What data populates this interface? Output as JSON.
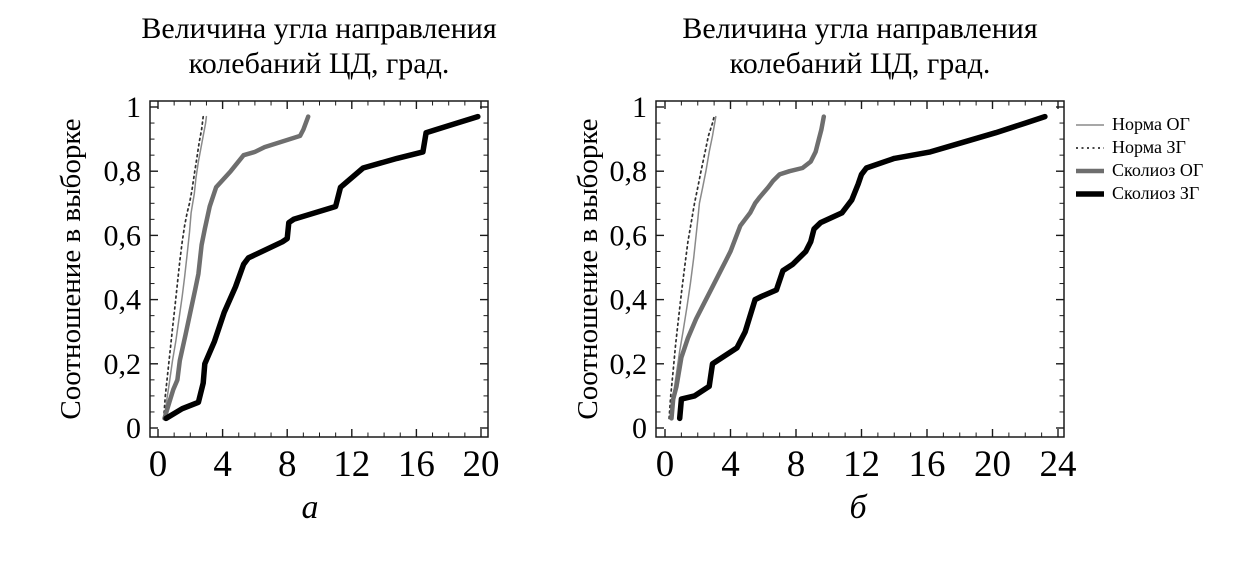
{
  "figure": {
    "background": "#ffffff",
    "frame_color": "#1a1a1a"
  },
  "legend": {
    "position": "right",
    "items": [
      {
        "key": "norma-og",
        "label": "Норма ОГ",
        "color": "#8a8a8a",
        "width": 1.5,
        "dash": ""
      },
      {
        "key": "norma-zg",
        "label": "Норма ЗГ",
        "color": "#2f2f2f",
        "width": 1.7,
        "dash": "2 3.5"
      },
      {
        "key": "skolioz-og",
        "label": "Сколиоз ОГ",
        "color": "#6e6e6e",
        "width": 4.5,
        "dash": ""
      },
      {
        "key": "skolioz-zg",
        "label": "Сколиоз ЗГ",
        "color": "#000000",
        "width": 5.5,
        "dash": ""
      }
    ]
  },
  "chart_data": [
    {
      "id": "a",
      "type": "line",
      "subtype": "ecdf",
      "title": "Величина угла направления колебаний ЦД, град.",
      "title_lines": [
        "Величина угла направления",
        "колебаний ЦД, град."
      ],
      "ylabel": "Соотношение в выборке",
      "sublabel": "а",
      "xlim": [
        0,
        20
      ],
      "ylim": [
        0,
        1
      ],
      "grid": false,
      "x_major_ticks": [
        0,
        4,
        8,
        12,
        16,
        20
      ],
      "x_tick_labels": [
        "0",
        "4",
        "8",
        "12",
        "16",
        "20"
      ],
      "x_minor_step": 1,
      "y_major_ticks": [
        0,
        0.2,
        0.4,
        0.6,
        0.8,
        1
      ],
      "y_tick_labels": [
        "0",
        "0,2",
        "0,4",
        "0,6",
        "0,8",
        "1"
      ],
      "y_minor_step": 0.05,
      "series": [
        {
          "name": "Норма ОГ",
          "points": [
            [
              0.4,
              0.03
            ],
            [
              0.55,
              0.09
            ],
            [
              0.7,
              0.14
            ],
            [
              0.9,
              0.21
            ],
            [
              1.1,
              0.27
            ],
            [
              1.3,
              0.34
            ],
            [
              1.5,
              0.41
            ],
            [
              1.65,
              0.47
            ],
            [
              1.8,
              0.54
            ],
            [
              1.95,
              0.61
            ],
            [
              2.05,
              0.67
            ],
            [
              2.15,
              0.7
            ],
            [
              2.25,
              0.73
            ],
            [
              2.35,
              0.78
            ],
            [
              2.5,
              0.83
            ],
            [
              2.65,
              0.87
            ],
            [
              2.8,
              0.91
            ],
            [
              2.95,
              0.95
            ],
            [
              3.0,
              0.97
            ]
          ]
        },
        {
          "name": "Норма ЗГ",
          "points": [
            [
              0.35,
              0.03
            ],
            [
              0.45,
              0.1
            ],
            [
              0.6,
              0.17
            ],
            [
              0.75,
              0.24
            ],
            [
              0.9,
              0.31
            ],
            [
              1.05,
              0.38
            ],
            [
              1.2,
              0.45
            ],
            [
              1.35,
              0.52
            ],
            [
              1.5,
              0.58
            ],
            [
              1.65,
              0.63
            ],
            [
              1.8,
              0.67
            ],
            [
              1.95,
              0.7
            ],
            [
              2.1,
              0.74
            ],
            [
              2.25,
              0.79
            ],
            [
              2.4,
              0.84
            ],
            [
              2.55,
              0.89
            ],
            [
              2.7,
              0.93
            ],
            [
              2.8,
              0.97
            ]
          ]
        },
        {
          "name": "Сколиоз ОГ",
          "points": [
            [
              0.4,
              0.03
            ],
            [
              0.7,
              0.08
            ],
            [
              0.95,
              0.12
            ],
            [
              1.2,
              0.15
            ],
            [
              1.35,
              0.21
            ],
            [
              1.7,
              0.29
            ],
            [
              2.0,
              0.36
            ],
            [
              2.3,
              0.43
            ],
            [
              2.5,
              0.48
            ],
            [
              2.7,
              0.57
            ],
            [
              2.9,
              0.62
            ],
            [
              3.2,
              0.69
            ],
            [
              3.6,
              0.75
            ],
            [
              4.5,
              0.8
            ],
            [
              5.3,
              0.85
            ],
            [
              6.0,
              0.86
            ],
            [
              6.6,
              0.875
            ],
            [
              8.8,
              0.91
            ],
            [
              9.0,
              0.93
            ],
            [
              9.3,
              0.97
            ]
          ]
        },
        {
          "name": "Сколиоз ЗГ",
          "points": [
            [
              0.5,
              0.03
            ],
            [
              1.5,
              0.06
            ],
            [
              2.5,
              0.08
            ],
            [
              2.8,
              0.14
            ],
            [
              2.9,
              0.2
            ],
            [
              3.5,
              0.27
            ],
            [
              4.1,
              0.36
            ],
            [
              4.8,
              0.44
            ],
            [
              5.3,
              0.51
            ],
            [
              5.6,
              0.53
            ],
            [
              7.7,
              0.58
            ],
            [
              8.0,
              0.59
            ],
            [
              8.1,
              0.64
            ],
            [
              8.4,
              0.65
            ],
            [
              11.0,
              0.69
            ],
            [
              11.3,
              0.75
            ],
            [
              12.7,
              0.81
            ],
            [
              14.8,
              0.84
            ],
            [
              16.4,
              0.86
            ],
            [
              16.6,
              0.92
            ],
            [
              19.8,
              0.97
            ]
          ]
        }
      ]
    },
    {
      "id": "b",
      "type": "line",
      "subtype": "ecdf",
      "title": "Величина угла направления колебаний ЦД, град.",
      "title_lines": [
        "Величина угла направления",
        "колебаний ЦД, град."
      ],
      "ylabel": "Соотношение в выборке",
      "sublabel": "б",
      "xlim": [
        0,
        24
      ],
      "ylim": [
        0,
        1
      ],
      "grid": false,
      "x_major_ticks": [
        0,
        4,
        8,
        12,
        16,
        20,
        24
      ],
      "x_tick_labels": [
        "0",
        "4",
        "8",
        "12",
        "16",
        "20",
        "24"
      ],
      "x_minor_step": 1,
      "y_major_ticks": [
        0,
        0.2,
        0.4,
        0.6,
        0.8,
        1
      ],
      "y_tick_labels": [
        "0",
        "0,2",
        "0,4",
        "0,6",
        "0,8",
        "1"
      ],
      "y_minor_step": 0.05,
      "series": [
        {
          "name": "Норма ОГ",
          "points": [
            [
              0.3,
              0.03
            ],
            [
              0.5,
              0.1
            ],
            [
              0.7,
              0.17
            ],
            [
              0.9,
              0.24
            ],
            [
              1.1,
              0.3
            ],
            [
              1.35,
              0.38
            ],
            [
              1.55,
              0.45
            ],
            [
              1.75,
              0.53
            ],
            [
              1.9,
              0.6
            ],
            [
              2.0,
              0.65
            ],
            [
              2.1,
              0.7
            ],
            [
              2.3,
              0.75
            ],
            [
              2.5,
              0.8
            ],
            [
              2.7,
              0.86
            ],
            [
              2.9,
              0.91
            ],
            [
              3.1,
              0.97
            ]
          ]
        },
        {
          "name": "Норма ЗГ",
          "points": [
            [
              0.25,
              0.03
            ],
            [
              0.35,
              0.1
            ],
            [
              0.5,
              0.18
            ],
            [
              0.65,
              0.26
            ],
            [
              0.8,
              0.33
            ],
            [
              1.0,
              0.42
            ],
            [
              1.2,
              0.5
            ],
            [
              1.4,
              0.58
            ],
            [
              1.6,
              0.64
            ],
            [
              1.8,
              0.7
            ],
            [
              2.0,
              0.75
            ],
            [
              2.2,
              0.8
            ],
            [
              2.45,
              0.86
            ],
            [
              2.65,
              0.91
            ],
            [
              2.9,
              0.95
            ],
            [
              3.0,
              0.97
            ]
          ]
        },
        {
          "name": "Сколиоз ОГ",
          "points": [
            [
              0.4,
              0.03
            ],
            [
              0.5,
              0.09
            ],
            [
              0.7,
              0.13
            ],
            [
              1.0,
              0.22
            ],
            [
              1.4,
              0.28
            ],
            [
              1.9,
              0.34
            ],
            [
              2.4,
              0.39
            ],
            [
              2.9,
              0.44
            ],
            [
              3.4,
              0.49
            ],
            [
              3.7,
              0.52
            ],
            [
              4.0,
              0.55
            ],
            [
              4.3,
              0.59
            ],
            [
              4.6,
              0.63
            ],
            [
              4.9,
              0.65
            ],
            [
              5.2,
              0.67
            ],
            [
              5.5,
              0.7
            ],
            [
              5.8,
              0.72
            ],
            [
              6.3,
              0.75
            ],
            [
              6.6,
              0.77
            ],
            [
              7.0,
              0.79
            ],
            [
              7.6,
              0.8
            ],
            [
              8.4,
              0.81
            ],
            [
              8.9,
              0.83
            ],
            [
              9.2,
              0.86
            ],
            [
              9.4,
              0.9
            ],
            [
              9.55,
              0.93
            ],
            [
              9.7,
              0.97
            ]
          ]
        },
        {
          "name": "Сколиоз ЗГ",
          "points": [
            [
              0.9,
              0.03
            ],
            [
              1.0,
              0.09
            ],
            [
              1.8,
              0.1
            ],
            [
              2.7,
              0.13
            ],
            [
              2.9,
              0.2
            ],
            [
              4.4,
              0.25
            ],
            [
              4.9,
              0.3
            ],
            [
              5.5,
              0.4
            ],
            [
              5.9,
              0.41
            ],
            [
              6.8,
              0.43
            ],
            [
              7.2,
              0.49
            ],
            [
              7.8,
              0.51
            ],
            [
              8.6,
              0.55
            ],
            [
              8.9,
              0.58
            ],
            [
              9.1,
              0.62
            ],
            [
              9.5,
              0.64
            ],
            [
              10.8,
              0.67
            ],
            [
              11.1,
              0.69
            ],
            [
              11.4,
              0.71
            ],
            [
              11.8,
              0.76
            ],
            [
              12.0,
              0.79
            ],
            [
              12.3,
              0.81
            ],
            [
              14.0,
              0.84
            ],
            [
              16.2,
              0.86
            ],
            [
              18.2,
              0.89
            ],
            [
              20.2,
              0.92
            ],
            [
              22.0,
              0.95
            ],
            [
              23.2,
              0.97
            ]
          ]
        }
      ]
    }
  ]
}
